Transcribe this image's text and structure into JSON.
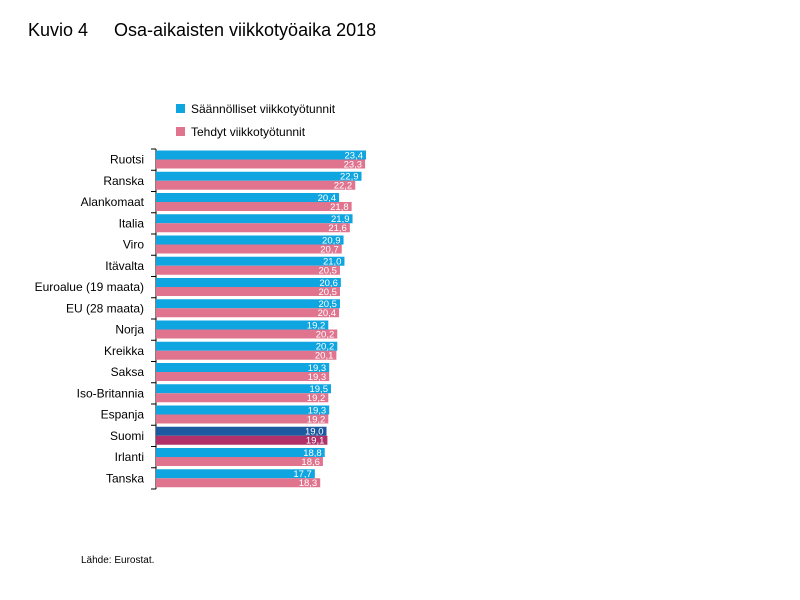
{
  "figure": {
    "number": "Kuvio 4",
    "title": "Osa-aikaisten viikkotyöaika 2018",
    "source": "Lähde: Eurostat."
  },
  "colors": {
    "series1": "#0ea5e0",
    "series2": "#e0748f",
    "highlight1": "#1b5aa0",
    "highlight2": "#b0306a"
  },
  "chart_data": {
    "type": "bar",
    "orientation": "horizontal",
    "legend_position": "top",
    "grid": false,
    "highlight_category": "Suomi",
    "xlim": [
      0,
      25
    ],
    "categories": [
      "Ruotsi",
      "Ranska",
      "Alankomaat",
      "Italia",
      "Viro",
      "Itävalta",
      "Euroalue (19 maata)",
      "EU (28 maata)",
      "Norja",
      "Kreikka",
      "Saksa",
      "Iso-Britannia",
      "Espanja",
      "Suomi",
      "Irlanti",
      "Tanska"
    ],
    "series": [
      {
        "name": "Säännölliset viikkotyötunnit",
        "values": [
          23.4,
          22.9,
          20.4,
          21.9,
          20.9,
          21.0,
          20.6,
          20.5,
          19.2,
          20.2,
          19.3,
          19.5,
          19.3,
          19.0,
          18.8,
          17.7
        ],
        "labels": [
          "23,4",
          "22,9",
          "20,4",
          "21,9",
          "20,9",
          "21,0",
          "20,6",
          "20,5",
          "19,2",
          "20,2",
          "19,3",
          "19,5",
          "19,3",
          "19,0",
          "18,8",
          "17,7"
        ]
      },
      {
        "name": "Tehdyt viikkotyötunnit",
        "values": [
          23.3,
          22.2,
          21.8,
          21.6,
          20.7,
          20.5,
          20.5,
          20.4,
          20.2,
          20.1,
          19.3,
          19.2,
          19.2,
          19.1,
          18.6,
          18.3
        ],
        "labels": [
          "23,3",
          "22,2",
          "21,8",
          "21,6",
          "20,7",
          "20,5",
          "20,5",
          "20,4",
          "20,2",
          "20,1",
          "19,3",
          "19,2",
          "19,2",
          "19,1",
          "18,6",
          "18,3"
        ]
      }
    ]
  }
}
